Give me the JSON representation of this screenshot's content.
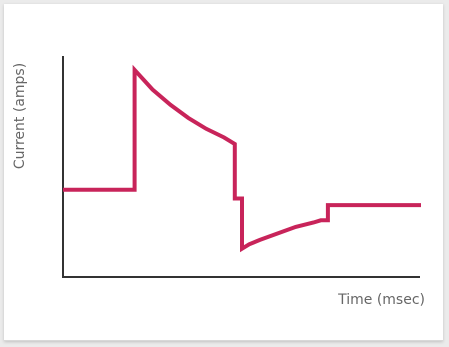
{
  "colors": {
    "background": "#ebebeb",
    "panel": "#ffffff",
    "axis": "#333333",
    "series": "#c8245a",
    "label": "#666666"
  },
  "chart_data": {
    "type": "line",
    "xlabel": "Time (msec)",
    "ylabel": "Current (amps)",
    "grid": false,
    "legend": "none",
    "xlim": [
      0,
      100
    ],
    "ylim": [
      0,
      100
    ],
    "series": [
      {
        "x": [
          0,
          20,
          20,
          25,
          30,
          35,
          40,
          45,
          48,
          48,
          49,
          49,
          50,
          50,
          52,
          55,
          60,
          65,
          70,
          72,
          74,
          74,
          100
        ],
        "y": [
          40,
          40,
          95,
          86,
          79,
          73,
          68,
          64,
          61,
          36,
          36,
          36,
          36,
          13,
          15,
          17,
          20,
          23,
          25,
          26,
          26,
          33,
          33
        ]
      }
    ]
  }
}
